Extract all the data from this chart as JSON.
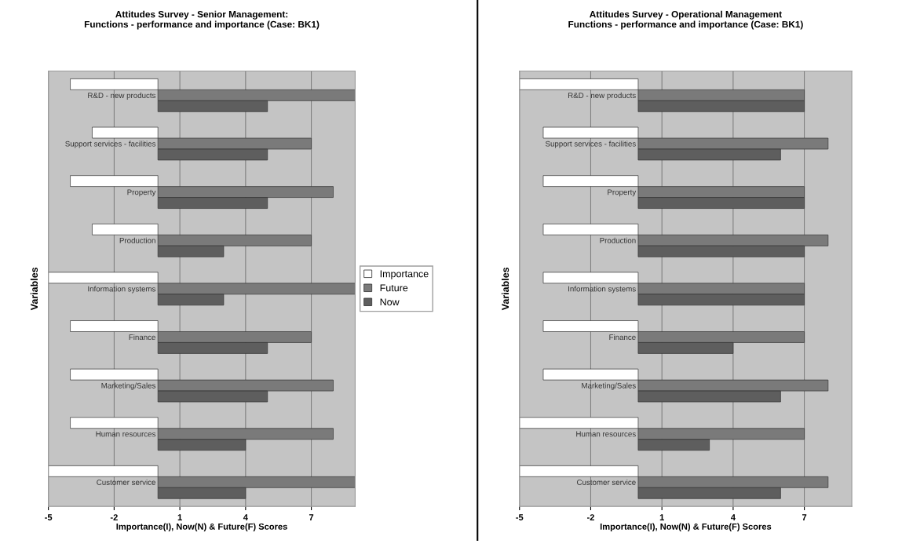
{
  "chart_data": [
    {
      "type": "bar",
      "orientation": "horizontal",
      "title": "Attitudes Survey - Senior Management:\nFunctions - performance and importance (Case: BK1)",
      "xlabel": "Importance(I), Now(N) & Future(F) Scores",
      "ylabel": "Variables",
      "categories": [
        "R&D - new products",
        "Support services - facilities",
        "Property",
        "Production",
        "Information systems",
        "Finance",
        "Marketing/Sales",
        "Human resources",
        "Customer service"
      ],
      "series": [
        {
          "name": "Importance",
          "color": "#ffffff",
          "values": [
            -4,
            -3,
            -4,
            -3,
            -5,
            -4,
            -4,
            -4,
            -5
          ]
        },
        {
          "name": "Future",
          "color": "#7a7a7a",
          "values": [
            9,
            7,
            8,
            7,
            9,
            7,
            8,
            8,
            9
          ]
        },
        {
          "name": "Now",
          "color": "#5e5e5e",
          "values": [
            5,
            5,
            5,
            3,
            3,
            5,
            5,
            4,
            4
          ]
        }
      ],
      "xlim": [
        -5,
        9
      ],
      "xticks": [
        -5,
        -2,
        1,
        4,
        7
      ],
      "grid": "x",
      "legend": "right"
    },
    {
      "type": "bar",
      "orientation": "horizontal",
      "title": "Attitudes Survey - Operational Management\nFunctions - performance and importance (Case: BK1)",
      "xlabel": "Importance(I), Now(N) & Future(F) Scores",
      "ylabel": "Variables",
      "categories": [
        "R&D - new products",
        "Support services - facilities",
        "Property",
        "Production",
        "Information systems",
        "Finance",
        "Marketing/Sales",
        "Human resources",
        "Customer service"
      ],
      "series": [
        {
          "color": "#ffffff",
          "values": [
            -5,
            -4,
            -4,
            -4,
            -4,
            -4,
            -4,
            -5,
            -5
          ]
        },
        {
          "color": "#7a7a7a",
          "values": [
            7,
            8,
            7,
            8,
            7,
            7,
            8,
            7,
            8
          ]
        },
        {
          "color": "#5e5e5e",
          "values": [
            7,
            6,
            7,
            7,
            7,
            4,
            6,
            3,
            6
          ]
        }
      ],
      "xlim": [
        -5,
        9
      ],
      "xticks": [
        -5,
        -2,
        1,
        4,
        7
      ],
      "grid": "x",
      "legend": false
    }
  ]
}
